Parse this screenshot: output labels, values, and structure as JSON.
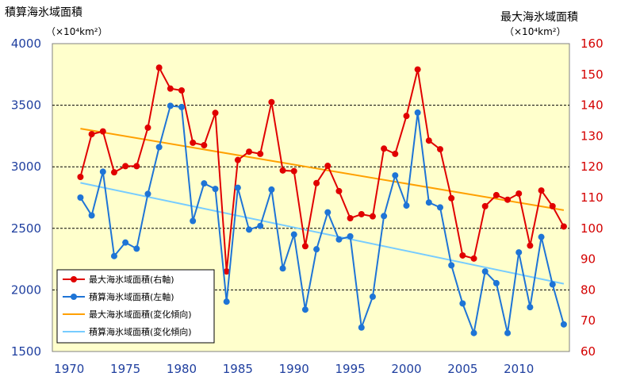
{
  "left_axis": {
    "title": "積算海氷域面積",
    "unit": "（×10⁴km²）"
  },
  "right_axis": {
    "title": "最大海氷域面積",
    "unit": "（×10⁴km²）"
  },
  "colors": {
    "plot_bg": "#ffffcc",
    "max_series": "#e00000",
    "acc_series": "#1e74d6",
    "max_trend": "#ffa000",
    "acc_trend": "#77ccff",
    "left_ticks": "#1f3f9f",
    "right_ticks": "#d40000"
  },
  "chart_data": {
    "type": "line",
    "title": "",
    "xlabel": "",
    "ylabel": "積算海氷域面積（×10⁴km²）",
    "y2label": "最大海氷域面積（×10⁴km²）",
    "xlim": [
      1968.5,
      2014.5
    ],
    "ylim": [
      1500,
      4000
    ],
    "y2lim": [
      60,
      160
    ],
    "x_ticks": [
      1970,
      1975,
      1980,
      1985,
      1990,
      1995,
      2000,
      2005,
      2010
    ],
    "y_ticks": [
      1500,
      2000,
      2500,
      3000,
      3500,
      4000
    ],
    "y2_ticks": [
      60,
      70,
      80,
      90,
      100,
      110,
      120,
      130,
      140,
      150,
      160
    ],
    "gridlines": [
      2000,
      2500,
      3000,
      3500
    ],
    "legend_position": "bottom-left",
    "years": [
      1971,
      1972,
      1973,
      1974,
      1975,
      1976,
      1977,
      1978,
      1979,
      1980,
      1981,
      1982,
      1983,
      1984,
      1985,
      1986,
      1987,
      1988,
      1989,
      1990,
      1991,
      1992,
      1993,
      1994,
      1995,
      1996,
      1997,
      1998,
      1999,
      2000,
      2001,
      2002,
      2003,
      2004,
      2005,
      2006,
      2007,
      2008,
      2009,
      2010,
      2011,
      2012,
      2013,
      2014
    ],
    "series": [
      {
        "name": "最大海氷域面積(右軸)",
        "axis": "right",
        "values": [
          116.7,
          130.6,
          131.5,
          118.2,
          120.2,
          120.2,
          132.7,
          152.2,
          145.4,
          144.8,
          127.8,
          127.0,
          137.5,
          86.0,
          122.2,
          124.9,
          124.2,
          141.0,
          118.8,
          118.6,
          94.2,
          114.7,
          120.3,
          112.1,
          103.3,
          104.6,
          103.9,
          125.9,
          124.2,
          136.5,
          151.6,
          128.5,
          125.7,
          109.8,
          91.2,
          90.2,
          107.2,
          110.8,
          109.3,
          111.3,
          94.4,
          112.3,
          107.2,
          100.6
        ]
      },
      {
        "name": "積算海氷域面積(左軸)",
        "axis": "left",
        "values": [
          2750,
          2605,
          2960,
          2275,
          2385,
          2335,
          2780,
          3160,
          3495,
          3485,
          2560,
          2865,
          2820,
          1905,
          2830,
          2490,
          2520,
          2815,
          2175,
          2450,
          1840,
          2330,
          2630,
          2410,
          2435,
          1695,
          1945,
          2600,
          2930,
          2685,
          3440,
          2710,
          2670,
          2200,
          1890,
          1650,
          2150,
          2055,
          1650,
          2305,
          1860,
          2430,
          2045,
          1720
        ]
      },
      {
        "name": "最大海氷域面積(変化傾向)",
        "axis": "right",
        "type": "trend",
        "x": [
          1971,
          2014
        ],
        "values": [
          132.4,
          105.9
        ]
      },
      {
        "name": "積算海氷域面積(変化傾向)",
        "axis": "left",
        "type": "trend",
        "x": [
          1971,
          2014
        ],
        "values": [
          2870,
          2050
        ]
      }
    ]
  }
}
